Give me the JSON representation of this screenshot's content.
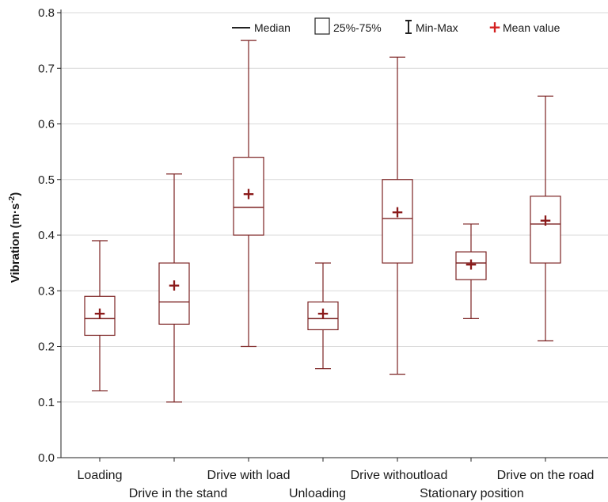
{
  "chart_data": {
    "type": "boxplot",
    "ylabel_main": "Vibration (m·s",
    "ylabel_sup": "-2",
    "ylabel_close": ")",
    "ylim": [
      0.0,
      0.8
    ],
    "yticks": [
      "0.0",
      "0.1",
      "0.2",
      "0.3",
      "0.4",
      "0.5",
      "0.6",
      "0.7",
      "0.8"
    ],
    "grid": "horizontal",
    "legend_position": "top-right",
    "legend": {
      "median": "Median",
      "iqr": "25%-75%",
      "minmax": "Min-Max",
      "mean": "Mean value"
    },
    "categories": [
      "Loading",
      "Drive in the stand",
      "Drive with load",
      "Unloading",
      "Drive withoutload",
      "Stationary position",
      "Drive on the road"
    ],
    "boxes": [
      {
        "min": 0.12,
        "q1": 0.22,
        "median": 0.25,
        "q3": 0.29,
        "max": 0.39,
        "mean": 0.26
      },
      {
        "min": 0.1,
        "q1": 0.24,
        "median": 0.28,
        "q3": 0.35,
        "max": 0.51,
        "mean": 0.31
      },
      {
        "min": 0.2,
        "q1": 0.4,
        "median": 0.45,
        "q3": 0.54,
        "max": 0.75,
        "mean": 0.475
      },
      {
        "min": 0.16,
        "q1": 0.23,
        "median": 0.25,
        "q3": 0.28,
        "max": 0.35,
        "mean": 0.26
      },
      {
        "min": 0.15,
        "q1": 0.35,
        "median": 0.43,
        "q3": 0.5,
        "max": 0.72,
        "mean": 0.442
      },
      {
        "min": 0.25,
        "q1": 0.32,
        "median": 0.35,
        "q3": 0.37,
        "max": 0.42,
        "mean": 0.348
      },
      {
        "min": 0.21,
        "q1": 0.35,
        "median": 0.42,
        "q3": 0.47,
        "max": 0.65,
        "mean": 0.427
      }
    ],
    "colors": {
      "box": "#7b2222",
      "mean": "#8b1a1a",
      "legend_mean": "#d42020",
      "grid": "#d8d8d8",
      "axis": "#222222"
    }
  }
}
